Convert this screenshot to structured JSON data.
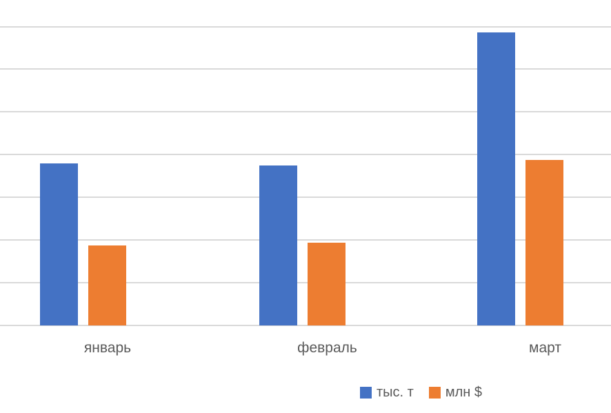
{
  "chart_data": {
    "type": "bar",
    "title": "",
    "xlabel": "",
    "ylabel": "",
    "categories": [
      "январь",
      "февраль",
      "март"
    ],
    "series": [
      {
        "name": "тыс. т",
        "color": "#4472C4",
        "values": [
          3.8,
          3.74,
          6.87
        ]
      },
      {
        "name": "млн $",
        "color": "#ED7D31",
        "values": [
          1.88,
          1.93,
          3.88
        ]
      }
    ],
    "ylim": [
      0,
      7
    ],
    "y_tick_labels": [],
    "gridline_count": 8,
    "grid": true,
    "legend_position": "bottom",
    "units_note": "y-axis has no visible tick labels; values estimated in gridline units (1 unit = one gridline interval)"
  },
  "legend": {
    "items": [
      {
        "label": "тыс. т",
        "color": "#4472C4"
      },
      {
        "label": "млн $",
        "color": "#ED7D31"
      }
    ]
  },
  "colors": {
    "background": "#FFFFFF",
    "gridline": "#D9D9D9",
    "axis_label_text": "#595959",
    "series_blue": "#4472C4",
    "series_orange": "#ED7D31"
  }
}
